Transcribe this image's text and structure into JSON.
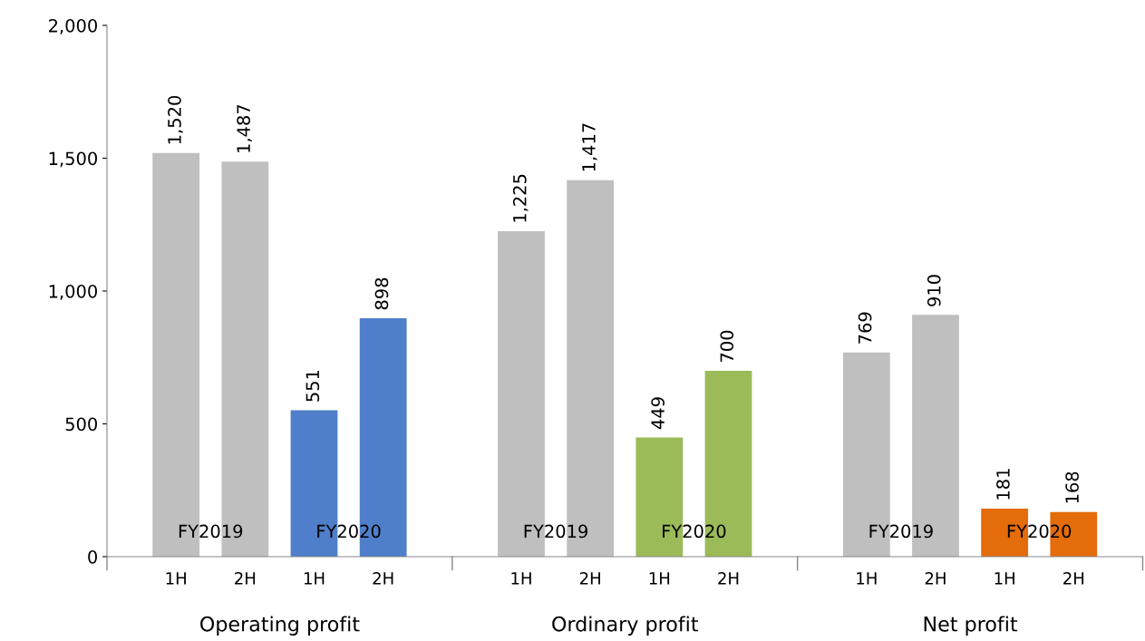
{
  "chart_data": {
    "type": "bar",
    "categories": [
      "1H",
      "2H",
      "1H",
      "2H",
      "1H",
      "2H",
      "1H",
      "2H",
      "1H",
      "2H",
      "1H",
      "2H"
    ],
    "values": [
      1520,
      1487,
      551,
      898,
      1225,
      1417,
      449,
      700,
      769,
      910,
      181,
      168
    ],
    "colors": [
      "#bfbfbf",
      "#bfbfbf",
      "#4f7fca",
      "#4f7fca",
      "#bfbfbf",
      "#bfbfbf",
      "#9bbb59",
      "#9bbb59",
      "#bfbfbf",
      "#bfbfbf",
      "#e46c0a",
      "#e46c0a"
    ],
    "ylim": [
      0,
      2000
    ],
    "yticks": [
      0,
      {
        "value": 500,
        "label": "500"
      },
      {
        "value": 1000,
        "label": "1,000"
      },
      {
        "value": 1500,
        "label": "1,500"
      },
      {
        "value": 2000,
        "label": "2,000"
      }
    ],
    "value_labels": [
      "1,520",
      "1,487",
      "551",
      "898",
      "1,225",
      "1,417",
      "449",
      "700",
      "769",
      "910",
      "181",
      "168"
    ],
    "annotations": [
      "FY2019",
      "FY2020",
      "FY2019",
      "FY2020",
      "FY2019",
      "FY2020",
      "Operating profit",
      "Ordinary profit",
      "Net profit"
    ],
    "grid": false,
    "legend": false
  }
}
